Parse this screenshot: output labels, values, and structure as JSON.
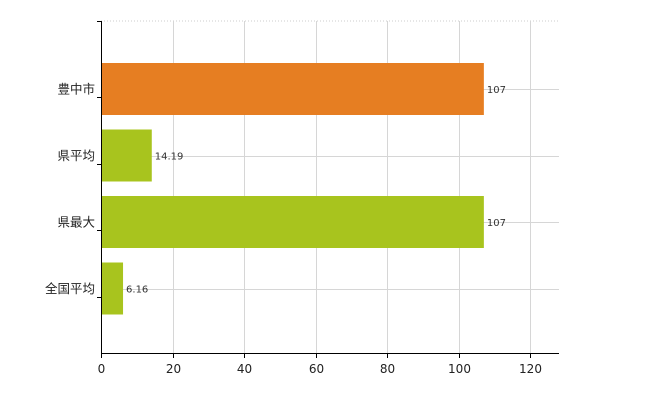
{
  "chart_data": {
    "type": "bar",
    "orientation": "horizontal",
    "categories": [
      "豊中市",
      "県平均",
      "県最大",
      "全国平均"
    ],
    "values": [
      107,
      14.19,
      107,
      6.16
    ],
    "data_labels": [
      "107",
      "14.19",
      "107",
      "6.16"
    ],
    "bar_colors": [
      "#e67e22",
      "#a8c41e",
      "#a8c41e",
      "#a8c41e"
    ],
    "xlim": [
      0,
      128
    ],
    "xticks": [
      0,
      20,
      40,
      60,
      80,
      100,
      120
    ],
    "grid": true,
    "title": "",
    "xlabel": "",
    "ylabel": ""
  }
}
